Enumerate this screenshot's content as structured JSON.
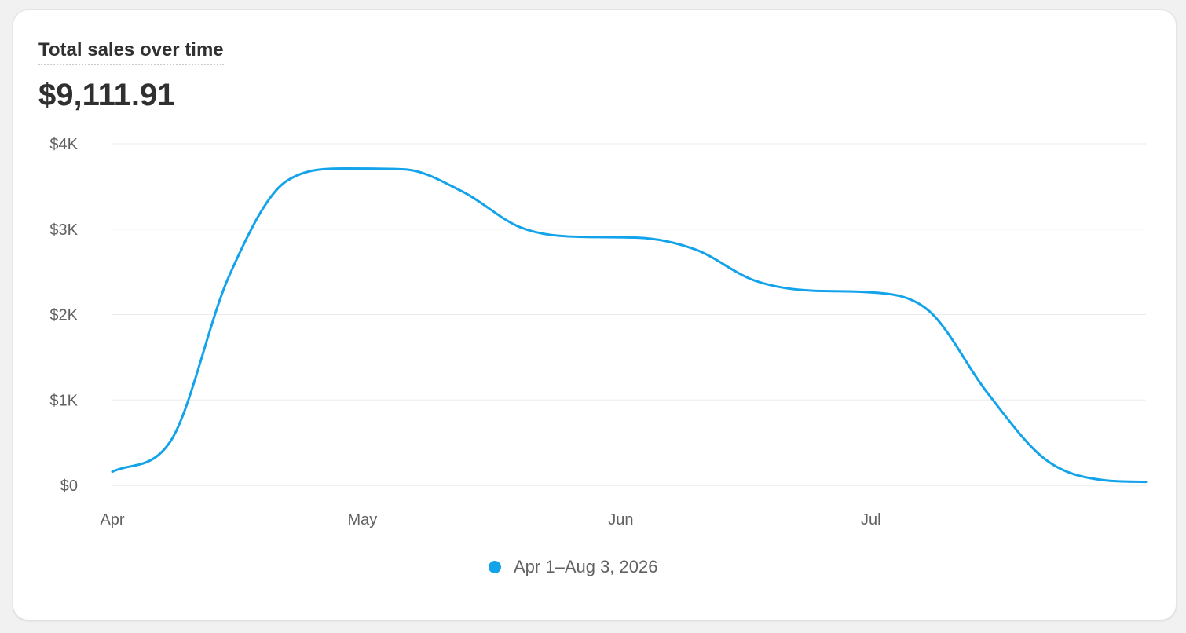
{
  "card": {
    "title": "Total sales over time",
    "total": "$9,111.91"
  },
  "chart_data": {
    "type": "line",
    "title": "Total sales over time",
    "xlabel": "",
    "ylabel": "",
    "x_ticks": [
      "Apr",
      "May",
      "Jun",
      "Jul"
    ],
    "y_ticks": [
      "$0",
      "$1K",
      "$2K",
      "$3K",
      "$4K"
    ],
    "ylim": [
      0,
      4000
    ],
    "xlim": [
      "2026-04-01",
      "2026-08-03"
    ],
    "grid": true,
    "legend_position": "bottom",
    "series": [
      {
        "name": "Apr 1–Aug 3, 2026",
        "color": "#13a3eb",
        "x": [
          "2026-04-01",
          "2026-04-08",
          "2026-04-15",
          "2026-04-22",
          "2026-04-29",
          "2026-05-06",
          "2026-05-13",
          "2026-05-20",
          "2026-05-27",
          "2026-06-03",
          "2026-06-10",
          "2026-06-17",
          "2026-06-24",
          "2026-07-01",
          "2026-07-08",
          "2026-07-15",
          "2026-07-22",
          "2026-07-29",
          "2026-08-03"
        ],
        "values": [
          160,
          520,
          2450,
          3570,
          3710,
          3700,
          3440,
          3020,
          2910,
          2900,
          2760,
          2400,
          2280,
          2260,
          2040,
          1080,
          300,
          60,
          40
        ]
      }
    ]
  }
}
